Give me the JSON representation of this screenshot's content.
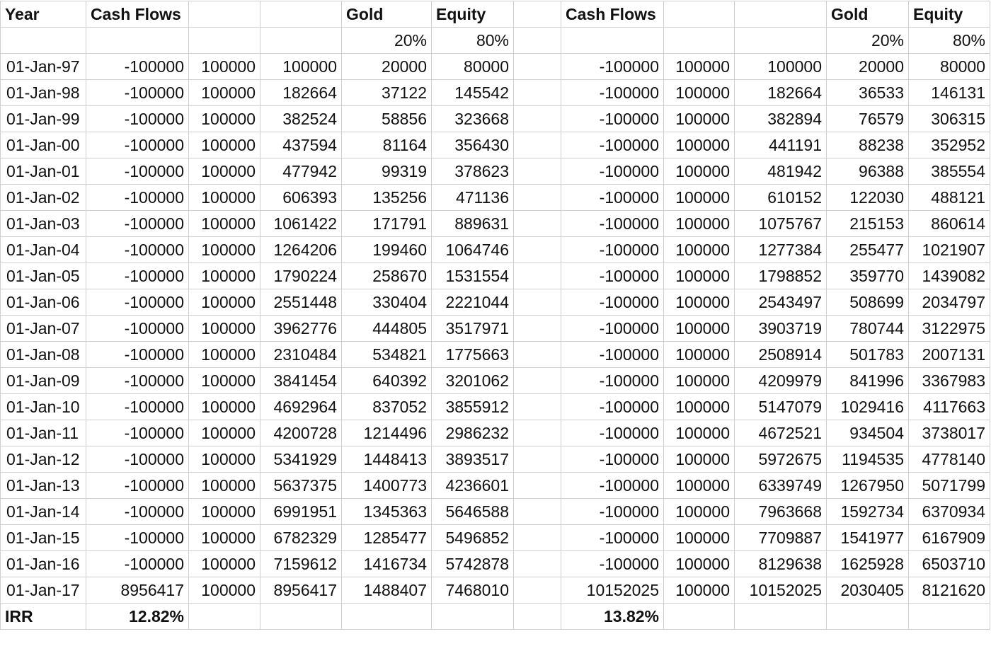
{
  "header_row_1": [
    "Year",
    "Cash Flows",
    "",
    "",
    "Gold",
    "Equity",
    "",
    "Cash Flows",
    "",
    "",
    "Gold",
    "Equity"
  ],
  "header_row_2": [
    "",
    "",
    "",
    "",
    "20%",
    "80%",
    "",
    "",
    "",
    "",
    "20%",
    "80%"
  ],
  "rows": [
    [
      "01-Jan-97",
      "-100000",
      "100000",
      "100000",
      "20000",
      "80000",
      "",
      "-100000",
      "100000",
      "100000",
      "20000",
      "80000"
    ],
    [
      "01-Jan-98",
      "-100000",
      "100000",
      "182664",
      "37122",
      "145542",
      "",
      "-100000",
      "100000",
      "182664",
      "36533",
      "146131"
    ],
    [
      "01-Jan-99",
      "-100000",
      "100000",
      "382524",
      "58856",
      "323668",
      "",
      "-100000",
      "100000",
      "382894",
      "76579",
      "306315"
    ],
    [
      "01-Jan-00",
      "-100000",
      "100000",
      "437594",
      "81164",
      "356430",
      "",
      "-100000",
      "100000",
      "441191",
      "88238",
      "352952"
    ],
    [
      "01-Jan-01",
      "-100000",
      "100000",
      "477942",
      "99319",
      "378623",
      "",
      "-100000",
      "100000",
      "481942",
      "96388",
      "385554"
    ],
    [
      "01-Jan-02",
      "-100000",
      "100000",
      "606393",
      "135256",
      "471136",
      "",
      "-100000",
      "100000",
      "610152",
      "122030",
      "488121"
    ],
    [
      "01-Jan-03",
      "-100000",
      "100000",
      "1061422",
      "171791",
      "889631",
      "",
      "-100000",
      "100000",
      "1075767",
      "215153",
      "860614"
    ],
    [
      "01-Jan-04",
      "-100000",
      "100000",
      "1264206",
      "199460",
      "1064746",
      "",
      "-100000",
      "100000",
      "1277384",
      "255477",
      "1021907"
    ],
    [
      "01-Jan-05",
      "-100000",
      "100000",
      "1790224",
      "258670",
      "1531554",
      "",
      "-100000",
      "100000",
      "1798852",
      "359770",
      "1439082"
    ],
    [
      "01-Jan-06",
      "-100000",
      "100000",
      "2551448",
      "330404",
      "2221044",
      "",
      "-100000",
      "100000",
      "2543497",
      "508699",
      "2034797"
    ],
    [
      "01-Jan-07",
      "-100000",
      "100000",
      "3962776",
      "444805",
      "3517971",
      "",
      "-100000",
      "100000",
      "3903719",
      "780744",
      "3122975"
    ],
    [
      "01-Jan-08",
      "-100000",
      "100000",
      "2310484",
      "534821",
      "1775663",
      "",
      "-100000",
      "100000",
      "2508914",
      "501783",
      "2007131"
    ],
    [
      "01-Jan-09",
      "-100000",
      "100000",
      "3841454",
      "640392",
      "3201062",
      "",
      "-100000",
      "100000",
      "4209979",
      "841996",
      "3367983"
    ],
    [
      "01-Jan-10",
      "-100000",
      "100000",
      "4692964",
      "837052",
      "3855912",
      "",
      "-100000",
      "100000",
      "5147079",
      "1029416",
      "4117663"
    ],
    [
      "01-Jan-11",
      "-100000",
      "100000",
      "4200728",
      "1214496",
      "2986232",
      "",
      "-100000",
      "100000",
      "4672521",
      "934504",
      "3738017"
    ],
    [
      "01-Jan-12",
      "-100000",
      "100000",
      "5341929",
      "1448413",
      "3893517",
      "",
      "-100000",
      "100000",
      "5972675",
      "1194535",
      "4778140"
    ],
    [
      "01-Jan-13",
      "-100000",
      "100000",
      "5637375",
      "1400773",
      "4236601",
      "",
      "-100000",
      "100000",
      "6339749",
      "1267950",
      "5071799"
    ],
    [
      "01-Jan-14",
      "-100000",
      "100000",
      "6991951",
      "1345363",
      "5646588",
      "",
      "-100000",
      "100000",
      "7963668",
      "1592734",
      "6370934"
    ],
    [
      "01-Jan-15",
      "-100000",
      "100000",
      "6782329",
      "1285477",
      "5496852",
      "",
      "-100000",
      "100000",
      "7709887",
      "1541977",
      "6167909"
    ],
    [
      "01-Jan-16",
      "-100000",
      "100000",
      "7159612",
      "1416734",
      "5742878",
      "",
      "-100000",
      "100000",
      "8129638",
      "1625928",
      "6503710"
    ],
    [
      "01-Jan-17",
      "8956417",
      "100000",
      "8956417",
      "1488407",
      "7468010",
      "",
      "10152025",
      "100000",
      "10152025",
      "2030405",
      "8121620"
    ]
  ],
  "irr_row": [
    "IRR",
    "12.82%",
    "",
    "",
    "",
    "",
    "",
    "13.82%",
    "",
    "",
    "",
    ""
  ]
}
